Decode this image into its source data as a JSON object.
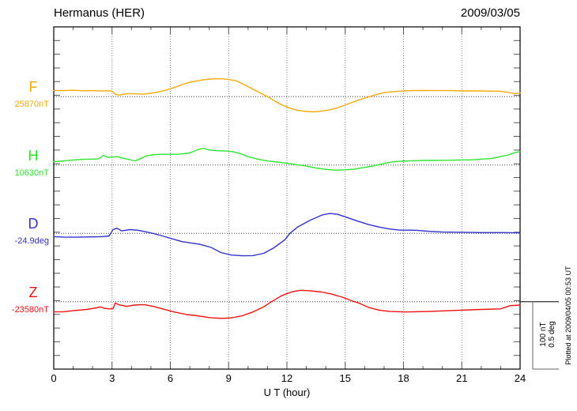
{
  "header": {
    "title": "Hermanus (HER)",
    "date": "2009/03/05"
  },
  "colors": {
    "frame": "#000000",
    "tick": "#555555",
    "grid": "#808080",
    "baseline": "#444444",
    "scalebar": "#999999",
    "F": "#f7a90a",
    "H": "#2ee52e",
    "D": "#3232cd",
    "Z": "#ee1111"
  },
  "chart_data": {
    "type": "line",
    "title": "Hermanus (HER)",
    "date": "2009/03/05",
    "xlabel": "U T (hour)",
    "x_range": [
      0,
      24
    ],
    "x_ticks": [
      0,
      3,
      6,
      9,
      12,
      15,
      18,
      21,
      24
    ],
    "x_minor_tick_step_hours": 1,
    "grid": "vertical dotted gridlines every 3 hours; dotted horizontal baseline per trace",
    "y_division": {
      "nT": 20,
      "deg": 0.1
    },
    "scale_bar": {
      "line1": "100 nT",
      "line2": "0.5 deg",
      "span_nT": 100,
      "span_deg": 0.5
    },
    "plotted_at": "Plotted at 2009/04/05 00:53 UT",
    "series": [
      {
        "id": "F",
        "label": "F",
        "baseline_label": "25870nT",
        "unit": "nT",
        "color": "#f7a90a",
        "points": [
          [
            0,
            9
          ],
          [
            0.5,
            9
          ],
          [
            1,
            9.5
          ],
          [
            1.5,
            8.8
          ],
          [
            2,
            9
          ],
          [
            2.5,
            8.5
          ],
          [
            2.9,
            8.8
          ],
          [
            3.05,
            7
          ],
          [
            3.2,
            3
          ],
          [
            3.4,
            2.5
          ],
          [
            3.6,
            3.8
          ],
          [
            3.9,
            4.6
          ],
          [
            4.2,
            4.2
          ],
          [
            4.6,
            3.6
          ],
          [
            5,
            5
          ],
          [
            5.4,
            7
          ],
          [
            5.8,
            10
          ],
          [
            6.2,
            13.5
          ],
          [
            6.6,
            18
          ],
          [
            7,
            21.5
          ],
          [
            7.4,
            23.5
          ],
          [
            7.8,
            25.5
          ],
          [
            8.2,
            26.3
          ],
          [
            8.6,
            26.6
          ],
          [
            9,
            25.5
          ],
          [
            9.4,
            23.5
          ],
          [
            9.8,
            18
          ],
          [
            10.2,
            12
          ],
          [
            10.6,
            6
          ],
          [
            11,
            0
          ],
          [
            11.4,
            -7
          ],
          [
            11.8,
            -13
          ],
          [
            12.2,
            -17.5
          ],
          [
            12.6,
            -20.5
          ],
          [
            13,
            -22
          ],
          [
            13.4,
            -22.5
          ],
          [
            13.8,
            -21.5
          ],
          [
            14.2,
            -19.5
          ],
          [
            14.6,
            -16.5
          ],
          [
            15,
            -12.5
          ],
          [
            15.4,
            -8
          ],
          [
            15.8,
            -4
          ],
          [
            16.2,
            -0.5
          ],
          [
            16.6,
            3
          ],
          [
            17,
            6
          ],
          [
            17.5,
            7.5
          ],
          [
            18,
            8.6
          ],
          [
            18.5,
            9
          ],
          [
            19,
            9.2
          ],
          [
            19.5,
            9
          ],
          [
            20,
            9
          ],
          [
            20.5,
            9
          ],
          [
            21,
            8.6
          ],
          [
            21.5,
            8.6
          ],
          [
            22,
            8.6
          ],
          [
            22.5,
            8.2
          ],
          [
            23,
            8
          ],
          [
            23.4,
            6.5
          ],
          [
            23.7,
            4.5
          ],
          [
            24,
            5.5
          ]
        ]
      },
      {
        "id": "H",
        "label": "H",
        "baseline_label": "10630nT",
        "unit": "nT",
        "color": "#2ee52e",
        "points": [
          [
            0,
            5
          ],
          [
            0.5,
            6
          ],
          [
            1,
            7.5
          ],
          [
            1.5,
            8.5
          ],
          [
            2,
            8.8
          ],
          [
            2.3,
            9
          ],
          [
            2.55,
            14.4
          ],
          [
            2.8,
            11.5
          ],
          [
            3.1,
            12
          ],
          [
            3.3,
            12.5
          ],
          [
            3.6,
            10
          ],
          [
            3.9,
            8
          ],
          [
            4.2,
            6.2
          ],
          [
            4.5,
            10
          ],
          [
            4.8,
            14
          ],
          [
            5.2,
            15.5
          ],
          [
            5.6,
            16
          ],
          [
            6,
            16
          ],
          [
            6.5,
            16.3
          ],
          [
            7,
            18
          ],
          [
            7.4,
            22.7
          ],
          [
            7.7,
            25
          ],
          [
            8,
            22.3
          ],
          [
            8.4,
            21.2
          ],
          [
            8.8,
            21
          ],
          [
            9.2,
            20
          ],
          [
            9.6,
            17
          ],
          [
            10,
            12.5
          ],
          [
            10.5,
            8.8
          ],
          [
            11,
            6
          ],
          [
            11.5,
            4.5
          ],
          [
            12,
            2.8
          ],
          [
            12.5,
            0.5
          ],
          [
            13,
            -1.5
          ],
          [
            13.5,
            -4.5
          ],
          [
            14,
            -6.5
          ],
          [
            14.5,
            -7.6
          ],
          [
            15,
            -7
          ],
          [
            15.5,
            -6
          ],
          [
            16,
            -3.5
          ],
          [
            16.5,
            -1
          ],
          [
            17,
            2.3
          ],
          [
            17.5,
            4.9
          ],
          [
            18,
            6
          ],
          [
            18.5,
            6.3
          ],
          [
            19,
            6.8
          ],
          [
            19.5,
            6.8
          ],
          [
            20,
            7
          ],
          [
            20.5,
            7.2
          ],
          [
            21,
            7.6
          ],
          [
            21.5,
            7.6
          ],
          [
            22,
            8.8
          ],
          [
            22.5,
            9.5
          ],
          [
            23,
            12.5
          ],
          [
            23.4,
            15
          ],
          [
            23.7,
            18.2
          ],
          [
            24,
            20
          ]
        ]
      },
      {
        "id": "D",
        "label": "D",
        "baseline_label": "-24.9deg",
        "unit": "deg",
        "color": "#3232cd",
        "points": [
          [
            0,
            -0.024
          ],
          [
            0.5,
            -0.027
          ],
          [
            1,
            -0.028
          ],
          [
            1.5,
            -0.027
          ],
          [
            2,
            -0.026
          ],
          [
            2.5,
            -0.024
          ],
          [
            2.85,
            -0.019
          ],
          [
            3.05,
            0.028
          ],
          [
            3.25,
            0.038
          ],
          [
            3.5,
            0.019
          ],
          [
            3.9,
            0.028
          ],
          [
            4.3,
            0.024
          ],
          [
            4.7,
            0.013
          ],
          [
            5.1,
            0
          ],
          [
            5.6,
            -0.019
          ],
          [
            6.05,
            -0.038
          ],
          [
            6.6,
            -0.061
          ],
          [
            7.1,
            -0.072
          ],
          [
            7.5,
            -0.08
          ],
          [
            8.1,
            -0.104
          ],
          [
            8.6,
            -0.142
          ],
          [
            9.15,
            -0.161
          ],
          [
            9.7,
            -0.166
          ],
          [
            10.25,
            -0.165
          ],
          [
            10.8,
            -0.148
          ],
          [
            11.3,
            -0.11
          ],
          [
            11.9,
            -0.047
          ],
          [
            12.15,
            0
          ],
          [
            12.55,
            0.047
          ],
          [
            13.2,
            0.098
          ],
          [
            13.8,
            0.136
          ],
          [
            14.2,
            0.148
          ],
          [
            14.6,
            0.142
          ],
          [
            15.1,
            0.118
          ],
          [
            15.65,
            0.091
          ],
          [
            16.2,
            0.066
          ],
          [
            16.75,
            0.047
          ],
          [
            17.3,
            0.032
          ],
          [
            17.85,
            0.024
          ],
          [
            18.3,
            0.024
          ],
          [
            18.7,
            0.023
          ],
          [
            19.3,
            0.015
          ],
          [
            20,
            0.01
          ],
          [
            21,
            0.008
          ],
          [
            21.4,
            0.007
          ],
          [
            22,
            0.006
          ],
          [
            22.7,
            0.006
          ],
          [
            23.5,
            0.005
          ],
          [
            24,
            0.004
          ]
        ]
      },
      {
        "id": "Z",
        "label": "Z",
        "baseline_label": "-23580nT",
        "unit": "nT",
        "color": "#ee1111",
        "points": [
          [
            0,
            -15
          ],
          [
            0.5,
            -14.8
          ],
          [
            1,
            -13.3
          ],
          [
            1.7,
            -11.4
          ],
          [
            2.1,
            -9.5
          ],
          [
            2.4,
            -7.6
          ],
          [
            2.6,
            -9.7
          ],
          [
            2.85,
            -10.6
          ],
          [
            3.05,
            -10.2
          ],
          [
            3.17,
            -1.9
          ],
          [
            3.35,
            -4.5
          ],
          [
            3.75,
            -6.8
          ],
          [
            4.15,
            -4.9
          ],
          [
            4.45,
            -4.5
          ],
          [
            4.7,
            -4.5
          ],
          [
            5.1,
            -6.8
          ],
          [
            5.6,
            -10.6
          ],
          [
            6.2,
            -15.1
          ],
          [
            6.85,
            -19
          ],
          [
            7.4,
            -20.8
          ],
          [
            8,
            -23.5
          ],
          [
            8.6,
            -24.7
          ],
          [
            9.15,
            -23.9
          ],
          [
            9.7,
            -20.8
          ],
          [
            10.25,
            -15.1
          ],
          [
            10.8,
            -7.6
          ],
          [
            11.2,
            0
          ],
          [
            11.75,
            9.4
          ],
          [
            12.3,
            15.1
          ],
          [
            12.7,
            17
          ],
          [
            13.2,
            16.3
          ],
          [
            13.8,
            14.4
          ],
          [
            14.3,
            11.4
          ],
          [
            14.85,
            6.8
          ],
          [
            15.4,
            0.8
          ],
          [
            15.7,
            -1.9
          ],
          [
            16.2,
            -8.3
          ],
          [
            16.75,
            -12.5
          ],
          [
            17.3,
            -14.4
          ],
          [
            18.1,
            -15.1
          ],
          [
            19.3,
            -14.4
          ],
          [
            20.7,
            -12.8
          ],
          [
            22,
            -11.4
          ],
          [
            23,
            -10.6
          ],
          [
            23.5,
            -5.7
          ],
          [
            24,
            -4.9
          ]
        ]
      }
    ]
  }
}
